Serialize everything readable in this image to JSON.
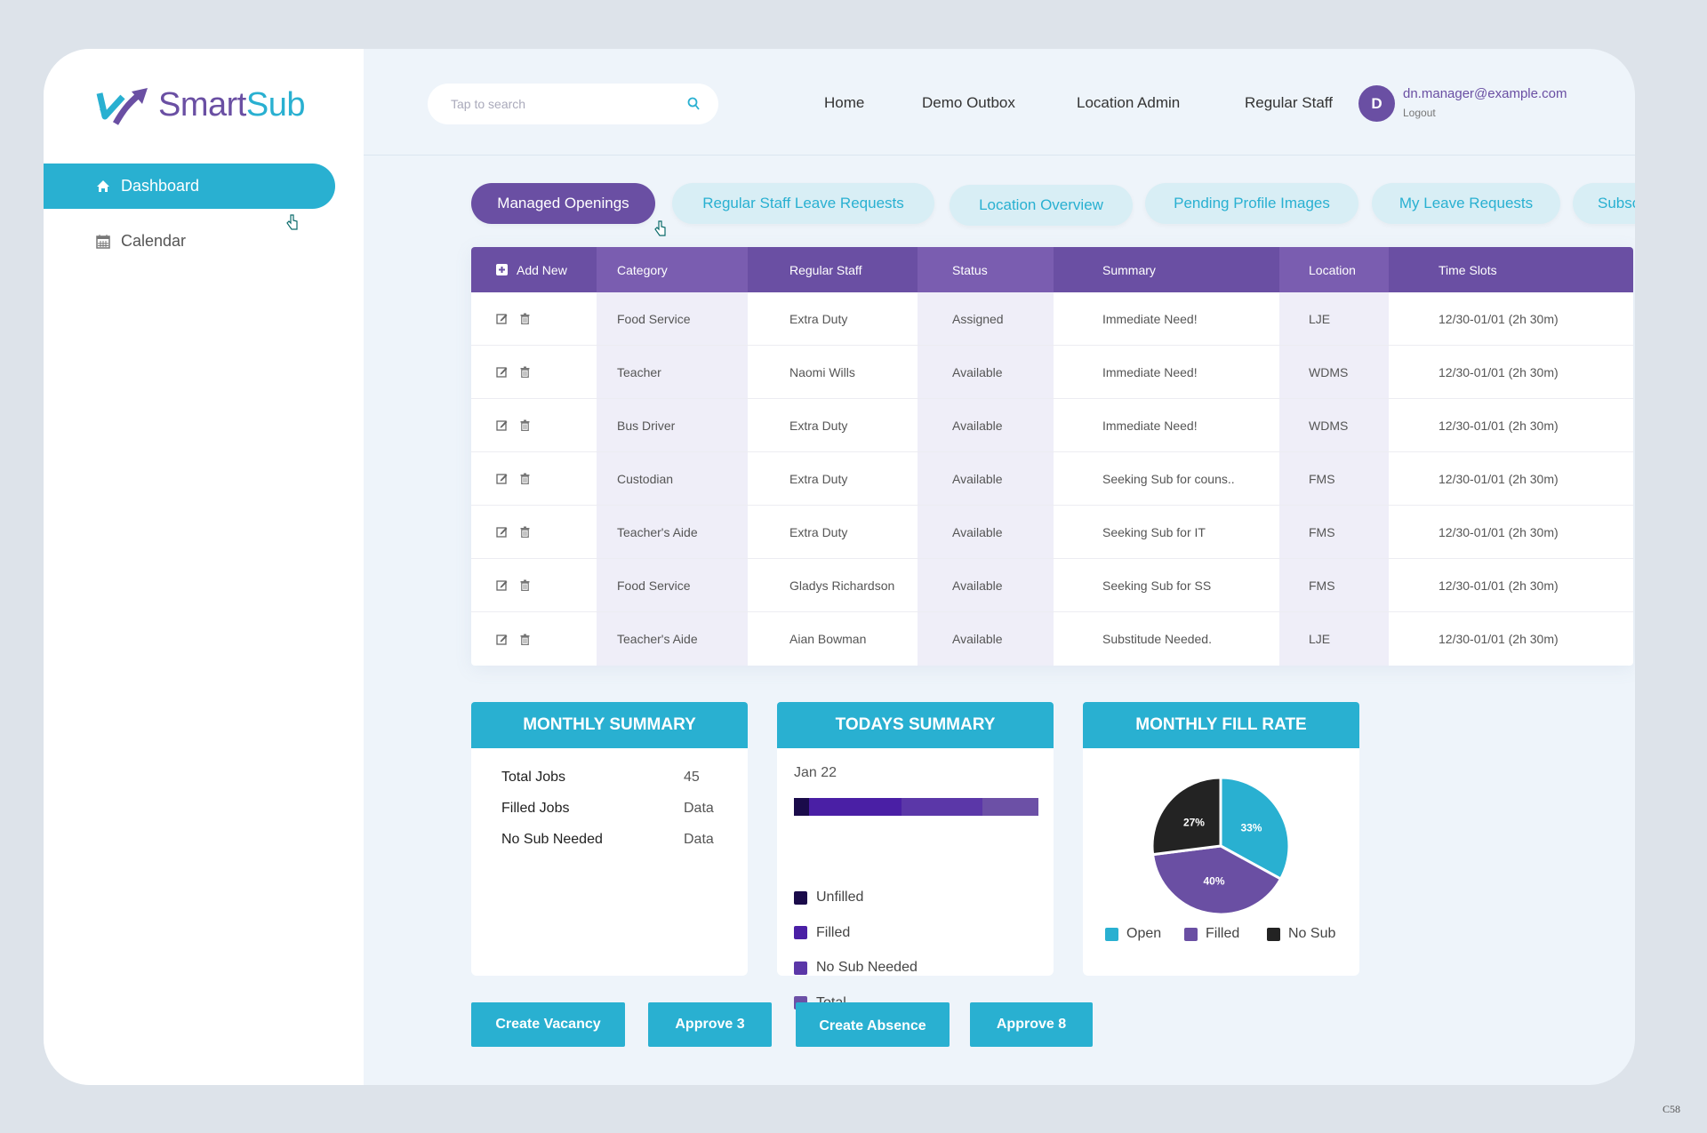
{
  "brand": {
    "name_part1": "Smart",
    "name_part2": "Sub"
  },
  "sidebar": {
    "items": [
      {
        "label": "Dashboard",
        "icon": "home-icon",
        "active": true
      },
      {
        "label": "Calendar",
        "icon": "calendar-icon",
        "active": false
      }
    ]
  },
  "header": {
    "search": {
      "placeholder": "Tap to search",
      "value": ""
    },
    "nav": [
      "Home",
      "Demo Outbox",
      "Location Admin",
      "Regular Staff"
    ],
    "user": {
      "initial": "D",
      "email": "dn.manager@example.com",
      "logout": "Logout"
    }
  },
  "tabs": [
    {
      "label": "Managed Openings",
      "active": true
    },
    {
      "label": "Regular Staff Leave Requests"
    },
    {
      "label": "Location Overview"
    },
    {
      "label": "Pending Profile Images"
    },
    {
      "label": "My Leave Requests"
    },
    {
      "label": "Subsctitude"
    }
  ],
  "table": {
    "add_new": "Add New",
    "columns": [
      "Category",
      "Regular Staff",
      "Status",
      "Summary",
      "Location",
      "Time Slots"
    ],
    "rows": [
      [
        "Food Service",
        "Extra Duty",
        "Assigned",
        "Immediate Need!",
        "LJE",
        "12/30-01/01 (2h 30m)"
      ],
      [
        "Teacher",
        "Naomi Wills",
        "Available",
        "Immediate Need!",
        "WDMS",
        "12/30-01/01 (2h 30m)"
      ],
      [
        "Bus Driver",
        "Extra Duty",
        "Available",
        "Immediate Need!",
        "WDMS",
        "12/30-01/01 (2h 30m)"
      ],
      [
        "Custodian",
        "Extra Duty",
        "Available",
        "Seeking Sub for couns..",
        "FMS",
        "12/30-01/01 (2h 30m)"
      ],
      [
        "Teacher's Aide",
        "Extra Duty",
        "Available",
        "Seeking Sub for IT",
        "FMS",
        "12/30-01/01 (2h 30m)"
      ],
      [
        "Food Service",
        "Gladys Richardson",
        "Available",
        "Seeking Sub for SS",
        "FMS",
        "12/30-01/01 (2h 30m)"
      ],
      [
        "Teacher's Aide",
        "Aian Bowman",
        "Available",
        "Substitude Needed.",
        "LJE",
        "12/30-01/01 (2h 30m)"
      ]
    ]
  },
  "monthly_summary": {
    "title": "MONTHLY SUMMARY",
    "rows": [
      {
        "label": "Total Jobs",
        "value": "45"
      },
      {
        "label": "Filled Jobs",
        "value": "Data"
      },
      {
        "label": "No Sub Needed",
        "value": "Data"
      }
    ]
  },
  "todays_summary": {
    "title": "TODAYS SUMMARY",
    "date": "Jan 22",
    "segments": [
      {
        "label": "Unfilled",
        "share": 0.06,
        "color": "#1a0b4a"
      },
      {
        "label": "Filled",
        "share": 0.38,
        "color": "#4a1fa5"
      },
      {
        "label": "No Sub Needed",
        "share": 0.33,
        "color": "#5b37a8"
      },
      {
        "label": "Total",
        "share": 0.23,
        "color": "#6c50a6"
      }
    ]
  },
  "fill_rate": {
    "title": "MONTHLY FILL RATE",
    "slices": [
      {
        "label": "Open",
        "value": 33,
        "text": "33%",
        "color": "#29b0d1"
      },
      {
        "label": "Filled",
        "value": 40,
        "text": "40%",
        "color": "#6a4fa3"
      },
      {
        "label": "No Sub",
        "value": 27,
        "text": "27%",
        "color": "#232323"
      }
    ]
  },
  "actions": [
    "Create Vacancy",
    "Approve 3",
    "Create Absence",
    "Approve 8"
  ],
  "corner_code": "C58"
}
